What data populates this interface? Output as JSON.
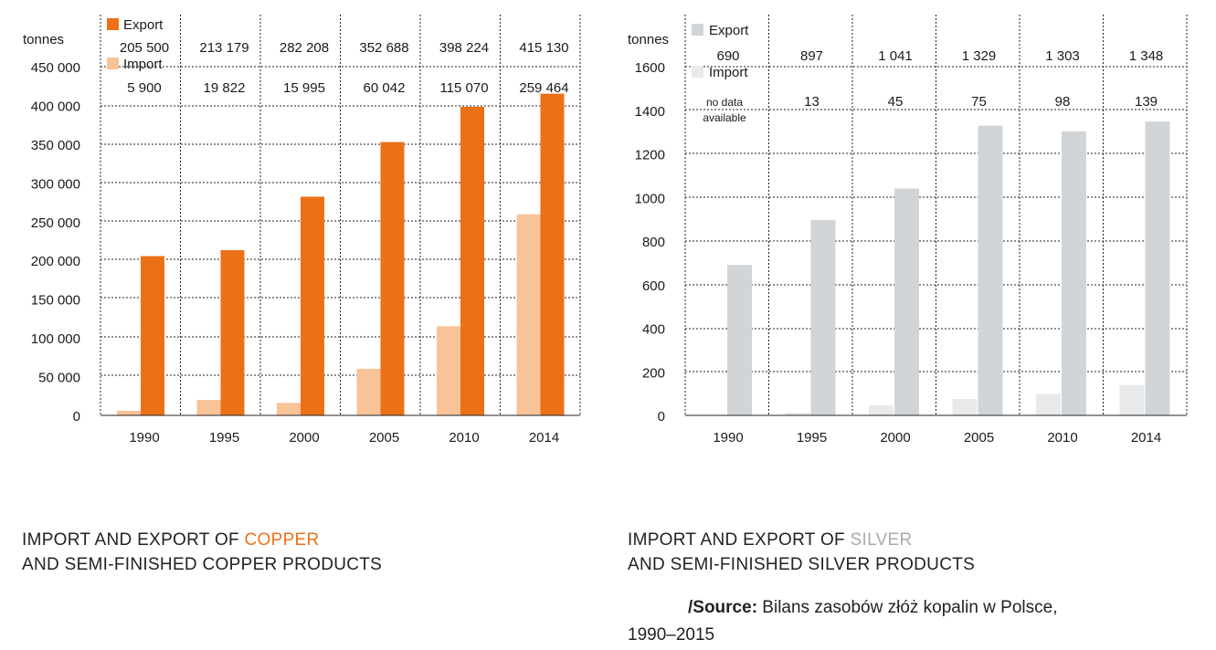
{
  "chart_data": [
    {
      "type": "bar",
      "categories": [
        "1990",
        "1995",
        "2000",
        "2005",
        "2010",
        "2014"
      ],
      "series": [
        {
          "name": "Export",
          "values": [
            205500,
            213179,
            282208,
            352688,
            398224,
            415130
          ],
          "color": "#ec7016"
        },
        {
          "name": "Import",
          "values": [
            5900,
            19822,
            15995,
            60042,
            115070,
            259464
          ],
          "color": "#f8c397"
        }
      ],
      "value_labels": {
        "Export": [
          "205 500",
          "213 179",
          "282 208",
          "352 688",
          "398 224",
          "415 130"
        ],
        "Import": [
          "5 900",
          "19 822",
          "15 995",
          "60 042",
          "115 070",
          "259 464"
        ]
      },
      "ylabel": "tonnes",
      "ylim": [
        0,
        450000
      ],
      "yticks": [
        0,
        50000,
        100000,
        150000,
        200000,
        250000,
        300000,
        350000,
        400000,
        450000
      ],
      "ytick_labels": [
        "0",
        "50 000",
        "100 000",
        "150 000",
        "200 000",
        "250 000",
        "300 000",
        "350 000",
        "400 000",
        "450 000"
      ],
      "grid": true,
      "legend": "top-left"
    },
    {
      "type": "bar",
      "categories": [
        "1990",
        "1995",
        "2000",
        "2005",
        "2010",
        "2014"
      ],
      "series": [
        {
          "name": "Export",
          "values": [
            690,
            897,
            1041,
            1329,
            1303,
            1348
          ],
          "color": "#d2d5d8"
        },
        {
          "name": "Import",
          "values": [
            null,
            13,
            45,
            75,
            98,
            139
          ],
          "color": "#e7e9eb"
        }
      ],
      "value_labels": {
        "Export": [
          "690",
          "897",
          "1 041",
          "1 329",
          "1 303",
          "1 348"
        ],
        "Import": [
          "no data available",
          "13",
          "45",
          "75",
          "98",
          "139"
        ]
      },
      "ylabel": "tonnes",
      "ylim": [
        0,
        1600
      ],
      "yticks": [
        0,
        200,
        400,
        600,
        800,
        1000,
        1200,
        1400,
        1600
      ],
      "ytick_labels": [
        "0",
        "200",
        "400",
        "600",
        "800",
        "1000",
        "1200",
        "1400",
        "1600"
      ],
      "grid": true,
      "legend": "top-left"
    }
  ],
  "captions": {
    "copper": {
      "line1_prefix": "IMPORT AND EXPORT OF ",
      "line1_accent": "COPPER",
      "line2": "AND SEMI-FINISHED COPPER PRODUCTS"
    },
    "silver": {
      "line1_prefix": "IMPORT AND EXPORT OF ",
      "line1_accent": "SILVER",
      "line2": "AND SEMI-FINISHED SILVER PRODUCTS"
    }
  },
  "source": {
    "label": "/Source:",
    "text": " Bilans zasobów złóż kopalin w Polsce,",
    "years": "1990–2015"
  }
}
